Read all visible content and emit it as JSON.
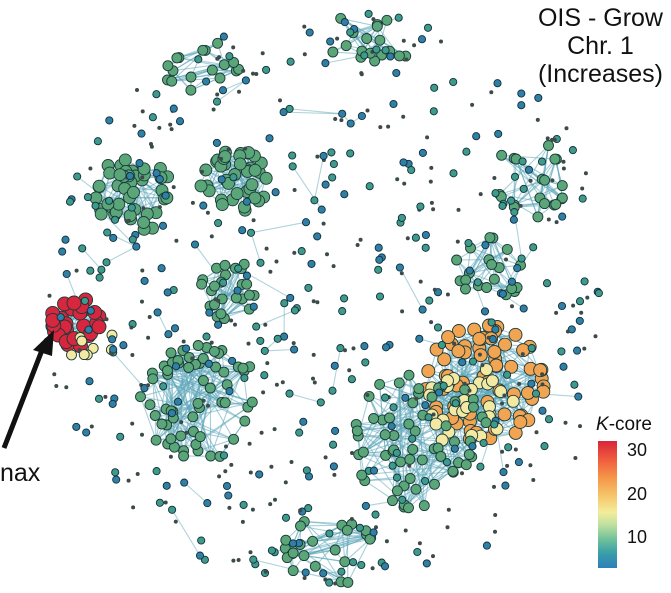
{
  "title_lines": [
    "OIS - Grow",
    "Chr. 1",
    "(Increases)"
  ],
  "kmax_label": "nax",
  "legend": {
    "title_k": "K",
    "title_rest": "-core",
    "ticks": [
      "30",
      "20",
      "10"
    ]
  },
  "colors": {
    "edge": "#5fa8b9",
    "low": "#2c7fb8",
    "mid": "#4fa88f",
    "cluster_green": "#5aa678",
    "yellow": "#f4e9a2",
    "orange": "#f1a451",
    "red": "#d7263d"
  }
}
